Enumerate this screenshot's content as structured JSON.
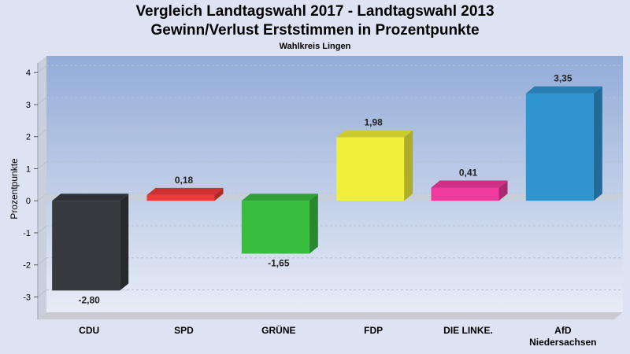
{
  "chart_data": {
    "type": "bar",
    "title": "Vergleich Landtagswahl 2017 - Landtagswahl 2013",
    "subtitle": "Gewinn/Verlust Erststimmen in Prozentpunkte",
    "caption": "Wahlkreis Lingen",
    "ylabel": "Prozentpunkte",
    "xlabel": "",
    "ylim": [
      -3.7,
      4.3
    ],
    "yticks": [
      {
        "value": 4,
        "label": "4"
      },
      {
        "value": 3,
        "label": "3"
      },
      {
        "value": 2,
        "label": "2"
      },
      {
        "value": 1,
        "label": "1"
      },
      {
        "value": 0,
        "label": "0"
      },
      {
        "value": -1,
        "label": "-1"
      },
      {
        "value": -2,
        "label": "-2"
      },
      {
        "value": -3,
        "label": "-3"
      }
    ],
    "grid": true,
    "categories": [
      {
        "line1": "CDU",
        "line2": ""
      },
      {
        "line1": "SPD",
        "line2": ""
      },
      {
        "line1": "GRÜNE",
        "line2": ""
      },
      {
        "line1": "FDP",
        "line2": ""
      },
      {
        "line1": "DIE LINKE.",
        "line2": ""
      },
      {
        "line1": "AfD",
        "line2": "Niedersachsen"
      }
    ],
    "values": [
      -2.8,
      0.18,
      -1.65,
      1.98,
      0.41,
      3.35
    ],
    "value_labels": [
      "-2,80",
      "0,18",
      "-1,65",
      "1,98",
      "0,41",
      "3,35"
    ],
    "colors": [
      "#363a3f",
      "#f23a3a",
      "#38bd3f",
      "#f0f03a",
      "#f03a9e",
      "#2f94d0"
    ]
  }
}
